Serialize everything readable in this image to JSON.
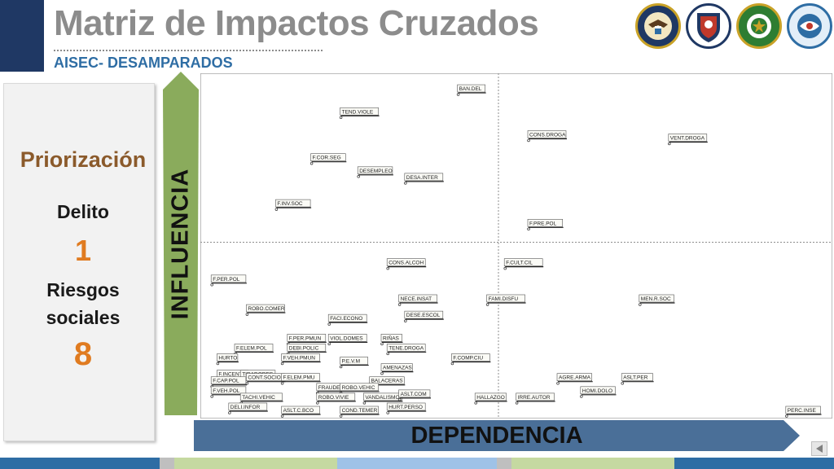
{
  "header": {
    "title": "Matriz de Impactos Cruzados",
    "subtitle": "AISEC- DESAMPARADOS"
  },
  "logos": [
    {
      "name": "us-embassy-seal",
      "caption": "UNITED STATES OF AMERICA · EMBASSY"
    },
    {
      "name": "fuerza-publica-shield",
      "caption": "FUERZA PUBLICA"
    },
    {
      "name": "police-badge",
      "caption": ""
    },
    {
      "name": "aisec-logo",
      "caption": "AISEC"
    }
  ],
  "side_panel": {
    "heading": "Priorización",
    "delito_label": "Delito",
    "delito_value": "1",
    "riesgos_line1": "Riesgos",
    "riesgos_line2": "sociales",
    "riesgos_value": "8"
  },
  "axis_labels": {
    "y": "INFLUENCIA",
    "x": "DEPENDENCIA"
  },
  "colors": {
    "accent_green": "#8aab5c",
    "accent_blue": "#4a6f98",
    "orange": "#e07b20",
    "brown": "#8b5a2b",
    "navy": "#1f3864"
  },
  "chart_data": {
    "type": "scatter",
    "title": "",
    "xlabel": "DEPENDENCIA",
    "ylabel": "INFLUENCIA",
    "xlim": [
      0,
      100
    ],
    "ylim": [
      0,
      100
    ],
    "grid": "quadrants",
    "x_divider": 50,
    "y_divider": 50,
    "points": [
      {
        "label": "BAN.DEL",
        "x": 43,
        "y": 98
      },
      {
        "label": "TEND.VIOLE",
        "x": 23,
        "y": 91
      },
      {
        "label": "CONS.DROGA",
        "x": 55,
        "y": 84
      },
      {
        "label": "VENT.DROGA",
        "x": 79,
        "y": 83
      },
      {
        "label": "F.COR.SEG",
        "x": 18,
        "y": 77
      },
      {
        "label": "DESEMPLEO",
        "x": 26,
        "y": 73
      },
      {
        "label": "DESA.INTER",
        "x": 34,
        "y": 71
      },
      {
        "label": "F.INV.SOC",
        "x": 12,
        "y": 63
      },
      {
        "label": "F.PRE.POL",
        "x": 55,
        "y": 57
      },
      {
        "label": "CONS.ALCOH",
        "x": 31,
        "y": 45
      },
      {
        "label": "F.CULT.CIL",
        "x": 51,
        "y": 45
      },
      {
        "label": "F.PER.POL",
        "x": 1,
        "y": 40
      },
      {
        "label": "NECE.INSAT",
        "x": 33,
        "y": 34
      },
      {
        "label": "FAMI.DISFU",
        "x": 48,
        "y": 34
      },
      {
        "label": "MEN.R.SOC",
        "x": 74,
        "y": 34
      },
      {
        "label": "ROBO.COMER",
        "x": 7,
        "y": 31
      },
      {
        "label": "DESE.ESCOL",
        "x": 34,
        "y": 29
      },
      {
        "label": "FACI.ECONO",
        "x": 21,
        "y": 28
      },
      {
        "label": "F.PER.PMUN",
        "x": 14,
        "y": 22
      },
      {
        "label": "VIOL.DOMES",
        "x": 21,
        "y": 22
      },
      {
        "label": "RIÑAS",
        "x": 30,
        "y": 22
      },
      {
        "label": "F.ELEM.POL",
        "x": 5,
        "y": 19
      },
      {
        "label": "DEBI.POLIC",
        "x": 14,
        "y": 19
      },
      {
        "label": "TENE.DROGA",
        "x": 31,
        "y": 19
      },
      {
        "label": "HURTO",
        "x": 2,
        "y": 16
      },
      {
        "label": "F.VEH.PMUN",
        "x": 13,
        "y": 16
      },
      {
        "label": "P.E.V.M",
        "x": 23,
        "y": 15
      },
      {
        "label": "F.COMP.CIU",
        "x": 42,
        "y": 16
      },
      {
        "label": "AMENAZAS",
        "x": 30,
        "y": 13
      },
      {
        "label": "F.INCENT",
        "x": 2,
        "y": 11
      },
      {
        "label": "TIRADORES",
        "x": 6,
        "y": 11
      },
      {
        "label": "CONT.SOCIO",
        "x": 7,
        "y": 10
      },
      {
        "label": "F.ELEM.PMU",
        "x": 13,
        "y": 10
      },
      {
        "label": "BALACERAS",
        "x": 28,
        "y": 9
      },
      {
        "label": "AGRE.ARMA",
        "x": 60,
        "y": 10
      },
      {
        "label": "ASLT.PER",
        "x": 71,
        "y": 10
      },
      {
        "label": "F.CAP.POL",
        "x": 1,
        "y": 9
      },
      {
        "label": "FRAUDE",
        "x": 19,
        "y": 7
      },
      {
        "label": "ROBO.VEHIC",
        "x": 23,
        "y": 7
      },
      {
        "label": "HOMI.DOLO",
        "x": 64,
        "y": 6
      },
      {
        "label": "F.VEH.POL",
        "x": 1,
        "y": 6
      },
      {
        "label": "TACHI.VEHIC",
        "x": 6,
        "y": 4
      },
      {
        "label": "ROBO.VIVIE",
        "x": 19,
        "y": 4
      },
      {
        "label": "VANDALISMO",
        "x": 27,
        "y": 4
      },
      {
        "label": "ASLT.COM",
        "x": 33,
        "y": 5
      },
      {
        "label": "HALLAZGO",
        "x": 46,
        "y": 4
      },
      {
        "label": "IRRE.AUTOR",
        "x": 53,
        "y": 4
      },
      {
        "label": "DELI.INFOR",
        "x": 4,
        "y": 1
      },
      {
        "label": "ASLT.C.BCO",
        "x": 13,
        "y": 0
      },
      {
        "label": "COND.TEMER",
        "x": 23,
        "y": 0
      },
      {
        "label": "HURT.PERSO",
        "x": 31,
        "y": 1
      },
      {
        "label": "PERC.INSE",
        "x": 99,
        "y": 0
      }
    ]
  }
}
